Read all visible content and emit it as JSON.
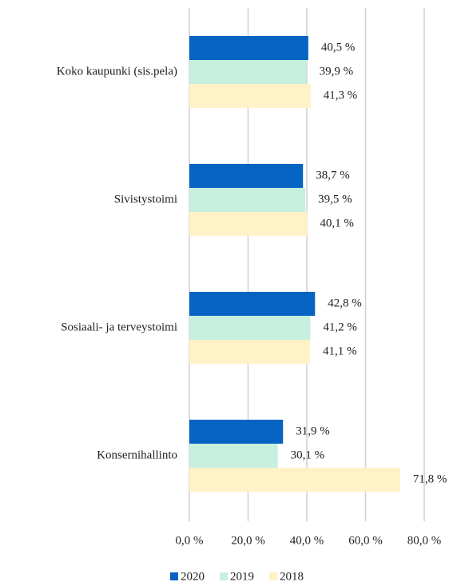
{
  "chart_data": {
    "type": "bar",
    "orientation": "horizontal",
    "categories": [
      "Koko kaupunki (sis.pela)",
      "Sivistystoimi",
      "Sosiaali- ja terveystoimi",
      "Konsernihallinto"
    ],
    "series": [
      {
        "name": "2020",
        "color": "#0563c1",
        "values": [
          40.5,
          38.7,
          42.8,
          31.9
        ],
        "value_labels": [
          "40,5 %",
          "38,7 %",
          "42,8 %",
          "31,9 %"
        ]
      },
      {
        "name": "2019",
        "color": "#c6efde",
        "values": [
          39.9,
          39.5,
          41.2,
          30.1
        ],
        "value_labels": [
          "39,9 %",
          "39,5 %",
          "41,2 %",
          "30,1 %"
        ]
      },
      {
        "name": "2018",
        "color": "#fff2c6",
        "values": [
          41.3,
          40.1,
          41.1,
          71.8
        ],
        "value_labels": [
          "41,3 %",
          "40,1 %",
          "41,1 %",
          "71,8 %"
        ]
      }
    ],
    "xlim": [
      0,
      80
    ],
    "xticks": [
      {
        "value": 0,
        "label": "0,0 %"
      },
      {
        "value": 20,
        "label": "20,0 %"
      },
      {
        "value": 40,
        "label": "40,0 %"
      },
      {
        "value": 60,
        "label": "60,0 %"
      },
      {
        "value": 80,
        "label": "80,0 %"
      }
    ],
    "grid": true,
    "legend": "bottom"
  }
}
